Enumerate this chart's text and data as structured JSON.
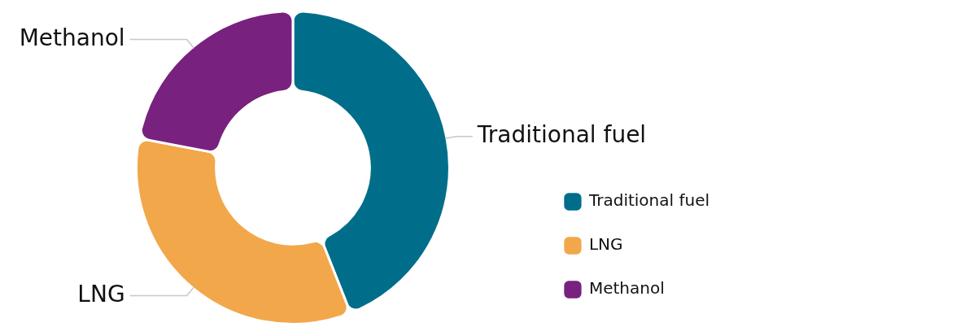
{
  "chart_data": {
    "type": "donut",
    "categories": [
      "Traditional fuel",
      "LNG",
      "Methanol"
    ],
    "values": [
      44,
      34,
      22
    ],
    "colors": [
      "#006e8a",
      "#f2a74b",
      "#78217e"
    ],
    "legend": "right"
  }
}
